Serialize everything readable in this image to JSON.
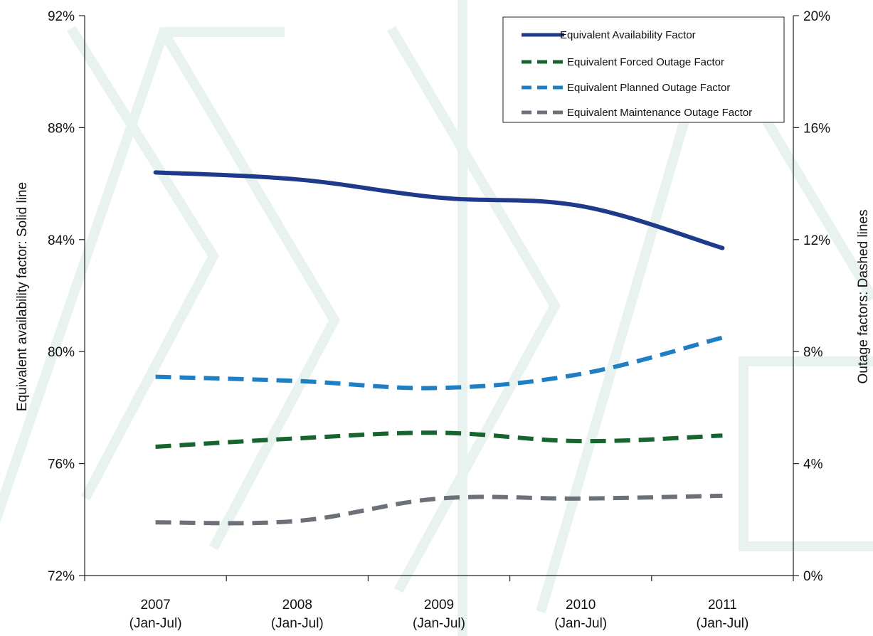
{
  "chart_data": {
    "type": "line",
    "title": "",
    "categories": [
      [
        "2007",
        "(Jan-Jul)"
      ],
      [
        "2008",
        "(Jan-Jul)"
      ],
      [
        "2009",
        "(Jan-Jul)"
      ],
      [
        "2010",
        "(Jan-Jul)"
      ],
      [
        "2011",
        "(Jan-Jul)"
      ]
    ],
    "left_axis": {
      "label": "Equivalent availability factor: Solid line",
      "range": [
        72,
        92
      ],
      "ticks": [
        "72%",
        "76%",
        "80%",
        "84%",
        "88%",
        "92%"
      ],
      "tick_values": [
        72,
        76,
        80,
        84,
        88,
        92
      ]
    },
    "right_axis": {
      "label": "Outage factors: Dashed lines",
      "range": [
        0,
        20
      ],
      "ticks": [
        "0%",
        "4%",
        "8%",
        "12%",
        "16%",
        "20%"
      ],
      "tick_values": [
        0,
        4,
        8,
        12,
        16,
        20
      ]
    },
    "grid": false,
    "legend_position": "top-right",
    "series": [
      {
        "name": "Equivalent Availability Factor",
        "axis": "left",
        "style": "solid",
        "color": "#1f3a8a",
        "values": [
          86.4,
          86.15,
          85.5,
          85.2,
          83.7
        ]
      },
      {
        "name": "Equivalent Forced Outage Factor",
        "axis": "right",
        "style": "dashed",
        "color": "#16642e",
        "values": [
          4.6,
          4.9,
          5.1,
          4.8,
          5.0
        ]
      },
      {
        "name": "Equivalent Planned Outage Factor",
        "axis": "right",
        "style": "dashed",
        "color": "#1f7fc4",
        "values": [
          7.1,
          6.95,
          6.7,
          7.2,
          8.5
        ]
      },
      {
        "name": "Equivalent Maintenance Outage Factor",
        "axis": "right",
        "style": "dashed",
        "color": "#6b7079",
        "values": [
          1.9,
          1.95,
          2.75,
          2.75,
          2.85
        ]
      }
    ]
  }
}
